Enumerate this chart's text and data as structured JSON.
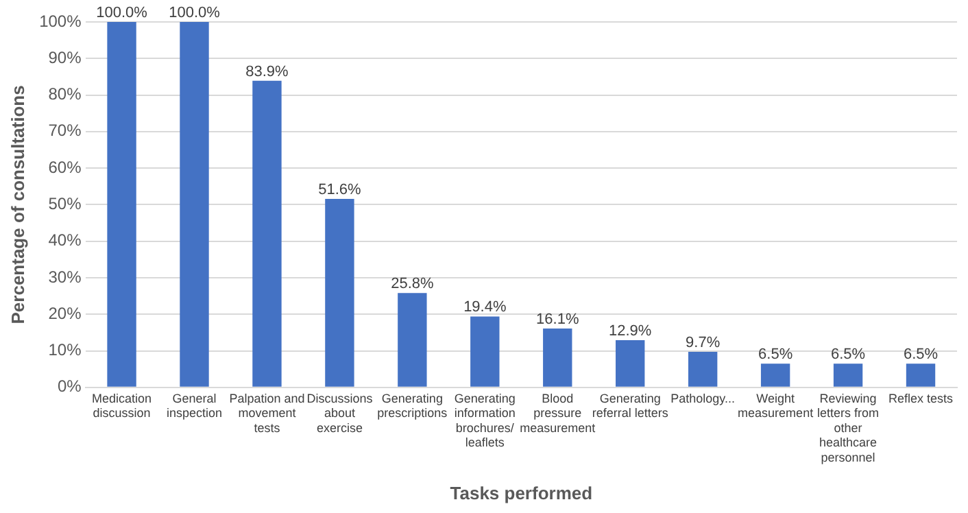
{
  "chart_data": {
    "type": "bar",
    "xlabel": "Tasks performed",
    "ylabel": "Percentage of consultations",
    "categories": [
      "Medication discussion",
      "General inspection",
      "Palpation and movement tests",
      "Discussions about exercise",
      "Generating prescriptions",
      "Generating information brochures/ leaflets",
      "Blood pressure measurement",
      "Generating referral letters",
      "Pathology...",
      "Weight measurement",
      "Reviewing letters from other healthcare personnel",
      "Reflex tests"
    ],
    "values": [
      100,
      100,
      83.9,
      51.6,
      25.8,
      19.4,
      16.1,
      12.9,
      9.7,
      6.5,
      6.5,
      6.5
    ],
    "value_labels": [
      "100.0%",
      "100.0%",
      "83.9%",
      "51.6%",
      "25.8%",
      "19.4%",
      "16.1%",
      "12.9%",
      "9.7%",
      "6.5%",
      "6.5%",
      "6.5%"
    ],
    "color": "#4472c4",
    "ylim": [
      0,
      100
    ],
    "yticks": [
      {
        "value": 0,
        "label": "0%"
      },
      {
        "value": 10,
        "label": "10%"
      },
      {
        "value": 20,
        "label": "20%"
      },
      {
        "value": 30,
        "label": "30%"
      },
      {
        "value": 40,
        "label": "40%"
      },
      {
        "value": 50,
        "label": "50%"
      },
      {
        "value": 60,
        "label": "60%"
      },
      {
        "value": 70,
        "label": "70%"
      },
      {
        "value": 80,
        "label": "80%"
      },
      {
        "value": 90,
        "label": "90%"
      },
      {
        "value": 100,
        "label": "100%"
      }
    ],
    "grid": "y"
  }
}
